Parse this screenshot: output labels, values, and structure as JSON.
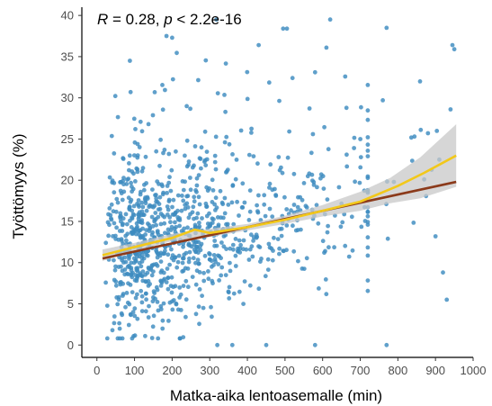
{
  "chart_data": {
    "type": "scatter",
    "annotation": {
      "r_symbol": "R",
      "r_text": " = 0.28, ",
      "p_symbol": "p",
      "p_text": " < 2.2e-16"
    },
    "xlabel": "Matka-aika lentoasemalle (min)",
    "ylabel": "Työttömyys (%)",
    "xlim": [
      -40,
      1000
    ],
    "ylim": [
      -1.5,
      41
    ],
    "x_ticks": [
      0,
      100,
      200,
      300,
      400,
      500,
      600,
      700,
      800,
      900,
      1000
    ],
    "y_ticks": [
      0,
      5,
      10,
      15,
      20,
      25,
      30,
      35,
      40
    ],
    "grid": false,
    "colors": {
      "points": "#3d8bbf",
      "linear_fit": "#8b3a1a",
      "loess_fit": "#f2c81a",
      "ci_band": "#c8c8c8"
    },
    "linear_fit": {
      "x": [
        15,
        955
      ],
      "y": [
        10.5,
        19.8
      ]
    },
    "loess_fit": {
      "x": [
        15,
        100,
        200,
        260,
        300,
        400,
        500,
        600,
        700,
        800,
        870,
        955
      ],
      "y": [
        10.9,
        11.9,
        13.0,
        14.0,
        13.6,
        14.3,
        15.2,
        16.3,
        17.4,
        19.3,
        20.9,
        23.0
      ]
    },
    "ci_band": {
      "x": [
        15,
        100,
        200,
        300,
        400,
        500,
        600,
        700,
        780,
        860,
        955
      ],
      "lower": [
        10.2,
        11.4,
        12.6,
        13.1,
        13.9,
        14.7,
        15.6,
        16.3,
        17.2,
        17.8,
        19.2
      ],
      "upper": [
        11.6,
        12.4,
        13.5,
        14.1,
        14.7,
        15.7,
        17.0,
        18.6,
        20.3,
        22.8,
        26.8
      ]
    },
    "outliers": [
      {
        "x": 320,
        "y": 0
      },
      {
        "x": 360,
        "y": 0
      },
      {
        "x": 450,
        "y": 0
      },
      {
        "x": 580,
        "y": 0
      },
      {
        "x": 770,
        "y": 0
      },
      {
        "x": 930,
        "y": 5.5
      },
      {
        "x": 920,
        "y": 8.8
      },
      {
        "x": 900,
        "y": 13.2
      },
      {
        "x": 185,
        "y": 37.5
      },
      {
        "x": 200,
        "y": 37.3
      },
      {
        "x": 620,
        "y": 39.5
      },
      {
        "x": 770,
        "y": 38.5
      },
      {
        "x": 945,
        "y": 36.4
      },
      {
        "x": 950,
        "y": 35.9
      },
      {
        "x": 495,
        "y": 38.4
      },
      {
        "x": 505,
        "y": 38.4
      },
      {
        "x": 910,
        "y": 22.5
      },
      {
        "x": 870,
        "y": 20.1
      },
      {
        "x": 940,
        "y": 28.6
      },
      {
        "x": 880,
        "y": 25.7
      },
      {
        "x": 760,
        "y": 29.7
      },
      {
        "x": 580,
        "y": 33.1
      },
      {
        "x": 520,
        "y": 32.4
      },
      {
        "x": 430,
        "y": 36.4
      }
    ],
    "n_points": 1000
  }
}
